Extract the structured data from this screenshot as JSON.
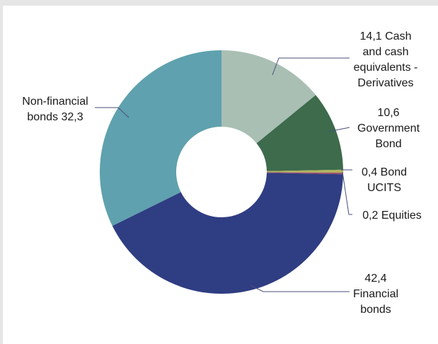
{
  "chart_data": {
    "type": "pie",
    "donut": true,
    "title": "",
    "slices": [
      {
        "label_lines": [
          "14,1  Cash",
          "and cash",
          "equivalents -",
          "Derivatives"
        ],
        "value": 14.1,
        "color": "#a9bfb4"
      },
      {
        "label_lines": [
          "10,6",
          "Government",
          "Bond"
        ],
        "value": 10.6,
        "color": "#3d6b4c"
      },
      {
        "label_lines": [
          "0,4  Bond",
          "UCITS"
        ],
        "value": 0.4,
        "color": "#b2b35f"
      },
      {
        "label_lines": [
          "0,2  Equities"
        ],
        "value": 0.2,
        "color": "#9b4a6e"
      },
      {
        "label_lines": [
          "42,4",
          "Financial",
          "bonds"
        ],
        "value": 42.4,
        "color": "#2f3d82"
      },
      {
        "label_lines": [
          "Non-financial",
          "bonds  32,3"
        ],
        "value": 32.3,
        "color": "#5fa1ae"
      }
    ],
    "legend": "none",
    "leader_line_color": "#4a4f7a"
  }
}
